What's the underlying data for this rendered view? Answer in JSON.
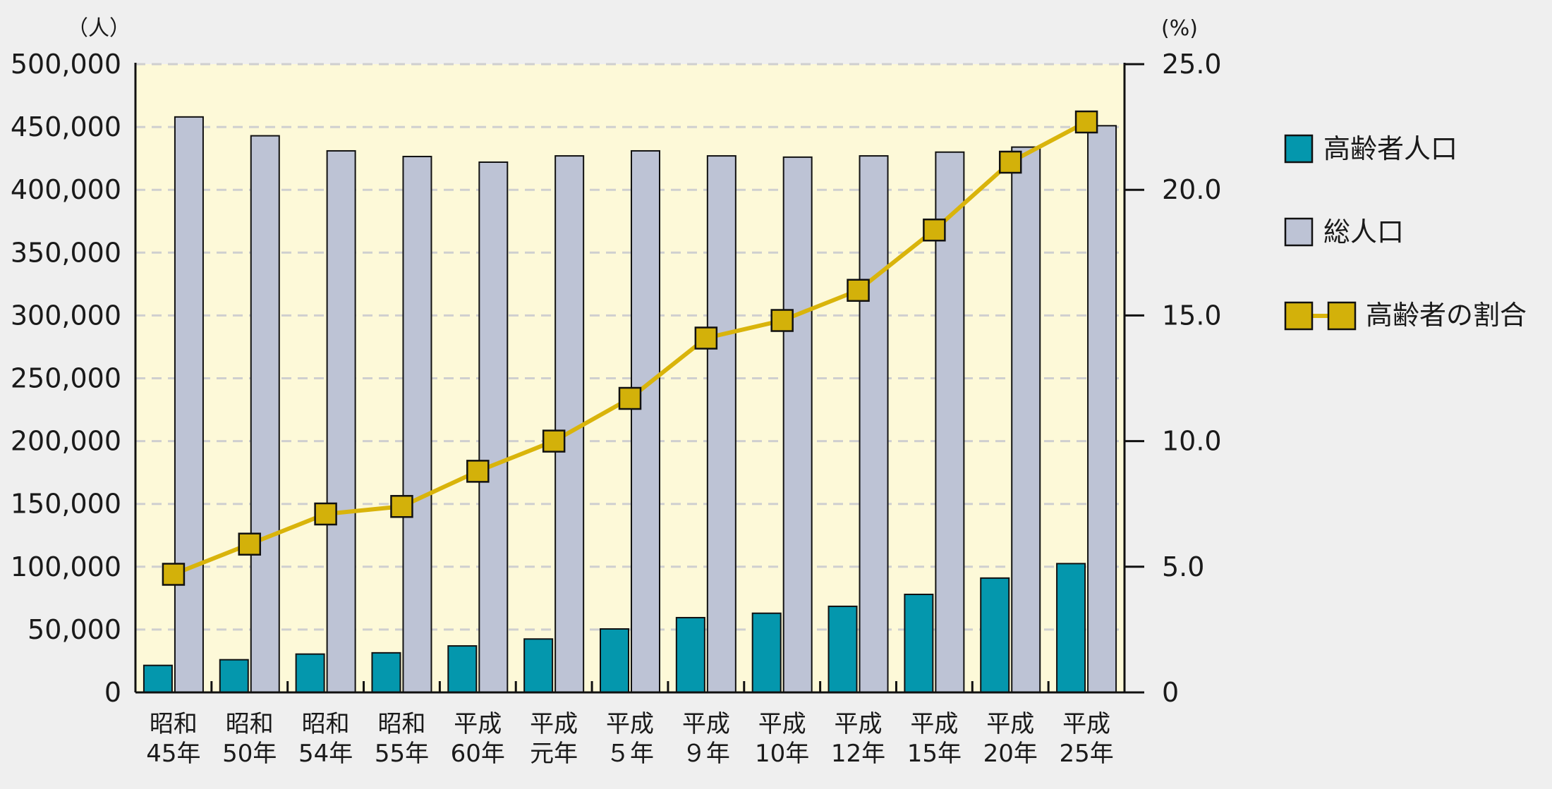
{
  "colors": {
    "background": "#efefef",
    "plot_bg": "#fdf9d8",
    "elderly_bar": "#0497ad",
    "total_bar": "#bdc3d5",
    "ratio_line": "#d9b40b",
    "ratio_marker": "#d3b10a",
    "grid": "#cfcfcf"
  },
  "axes": {
    "left_unit": "（人）",
    "right_unit": "(%)"
  },
  "chart_data": {
    "type": "bar",
    "categories": [
      [
        "昭和",
        "45年"
      ],
      [
        "昭和",
        "50年"
      ],
      [
        "昭和",
        "54年"
      ],
      [
        "昭和",
        "55年"
      ],
      [
        "平成",
        "60年"
      ],
      [
        "平成",
        "元年"
      ],
      [
        "平成",
        "５年"
      ],
      [
        "平成",
        "９年"
      ],
      [
        "平成",
        "10年"
      ],
      [
        "平成",
        "12年"
      ],
      [
        "平成",
        "15年"
      ],
      [
        "平成",
        "20年"
      ],
      [
        "平成",
        "25年"
      ]
    ],
    "series": [
      {
        "name": "高齢者人口",
        "type": "bar",
        "axis": "left",
        "values": [
          21500,
          26000,
          30500,
          31500,
          37000,
          42500,
          50500,
          59500,
          63000,
          68500,
          78000,
          91000,
          102500
        ]
      },
      {
        "name": "総人口",
        "type": "bar",
        "axis": "left",
        "values": [
          458000,
          443000,
          431000,
          426500,
          422000,
          427000,
          431000,
          427000,
          426000,
          427000,
          430000,
          434000,
          451000
        ]
      },
      {
        "name": "高齢者の割合",
        "type": "line",
        "axis": "right",
        "values": [
          4.7,
          5.9,
          7.1,
          7.4,
          8.8,
          10.0,
          11.7,
          14.1,
          14.8,
          16.0,
          18.4,
          21.1,
          22.7
        ]
      }
    ],
    "y_left": {
      "min": 0,
      "max": 500000,
      "ticks": [
        "0",
        "50,000",
        "100,000",
        "150,000",
        "200,000",
        "250,000",
        "300,000",
        "350,000",
        "400,000",
        "450,000",
        "500,000"
      ]
    },
    "y_right": {
      "min": 0,
      "max": 25,
      "ticks": [
        "0",
        "5.0",
        "10.0",
        "15.0",
        "20.0",
        "25.0"
      ]
    },
    "grid": true,
    "legend_position": "right"
  }
}
